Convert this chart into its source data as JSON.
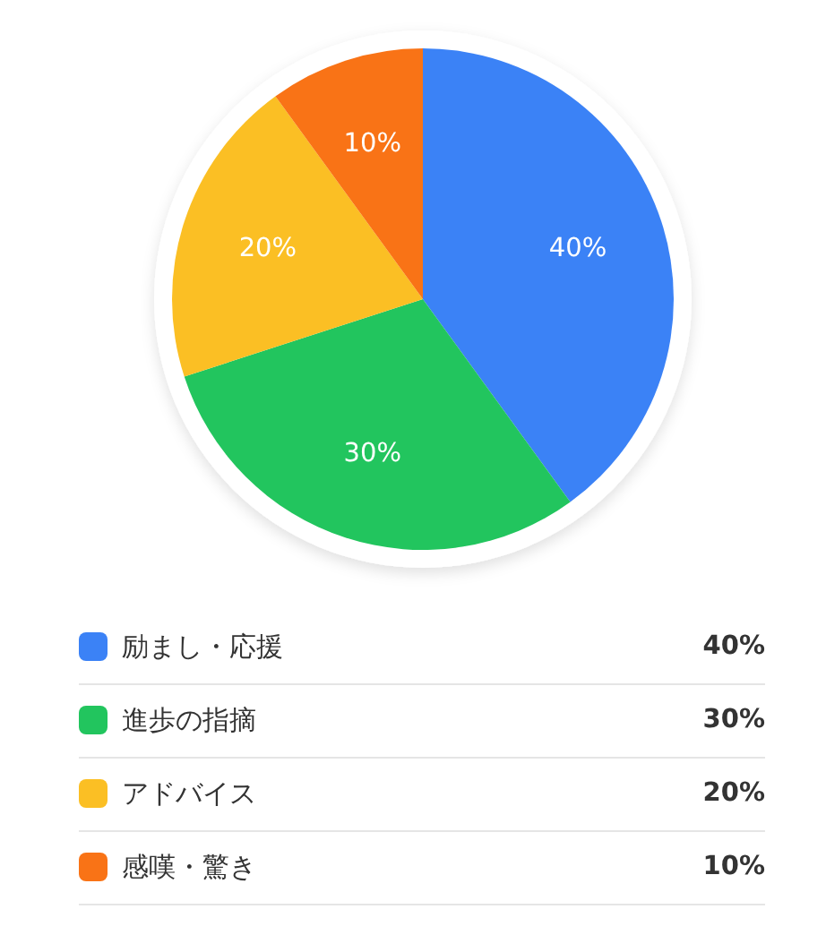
{
  "chart_data": {
    "type": "pie",
    "categories": [
      "励まし・応援",
      "進歩の指摘",
      "アドバイス",
      "感嘆・驚き"
    ],
    "values": [
      40,
      30,
      20,
      10
    ],
    "colors": [
      "#3b82f6",
      "#22c55e",
      "#fbbf24",
      "#f97316"
    ],
    "value_labels": [
      "40%",
      "30%",
      "20%",
      "10%"
    ],
    "legend": "bottom"
  }
}
